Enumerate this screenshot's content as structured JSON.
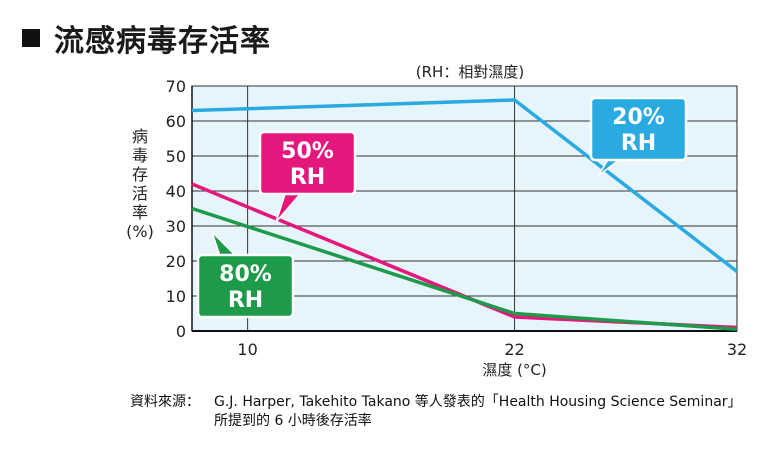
{
  "page": {
    "title": "流感病毒存活率"
  },
  "chart_data": {
    "type": "line",
    "subtitle": "(RH：相對濕度)",
    "xlabel": "濕度 (°C)",
    "ylabel": "病毒存活率 (%)",
    "ylabel_chars": [
      "病",
      "毒",
      "存",
      "活",
      "率",
      "(%)"
    ],
    "x_ticks": [
      10,
      22,
      32
    ],
    "y_ticks": [
      0,
      10,
      20,
      30,
      40,
      50,
      60,
      70
    ],
    "xlim": [
      7.5,
      32
    ],
    "ylim": [
      0,
      70
    ],
    "grid": true,
    "series": [
      {
        "name": "20% RH",
        "label_lines": [
          "20%",
          "RH"
        ],
        "color": "#29aae1",
        "x": [
          7.5,
          22,
          32
        ],
        "y": [
          63,
          66,
          17
        ]
      },
      {
        "name": "50% RH",
        "label_lines": [
          "50%",
          "RH"
        ],
        "color": "#e4187c",
        "x": [
          7.5,
          22,
          32
        ],
        "y": [
          42,
          4,
          1
        ]
      },
      {
        "name": "80% RH",
        "label_lines": [
          "80%",
          "RH"
        ],
        "color": "#1d9a4a",
        "x": [
          7.5,
          22,
          32
        ],
        "y": [
          35,
          5,
          0.5
        ]
      }
    ]
  },
  "source": {
    "label": "資料來源：",
    "text": "G.J. Harper, Takehito Takano 等人發表的「Health Housing Science Seminar」所提到的 6 小時後存活率"
  }
}
